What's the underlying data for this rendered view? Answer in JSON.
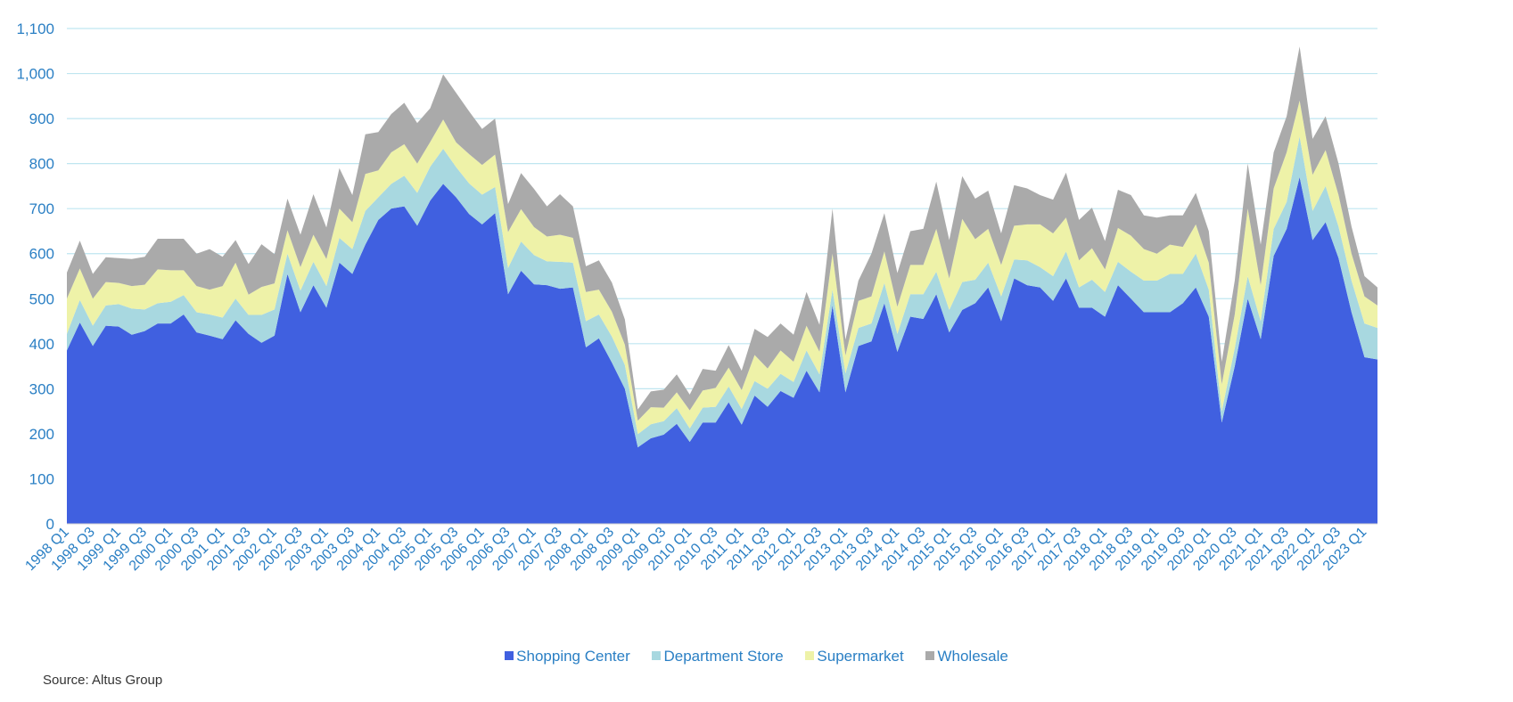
{
  "chart_data": {
    "type": "area",
    "stacked": true,
    "title": "",
    "xlabel": "",
    "ylabel": "",
    "ylim": [
      0,
      1100
    ],
    "yticks": [
      0,
      100,
      200,
      300,
      400,
      500,
      600,
      700,
      800,
      900,
      1000,
      1100
    ],
    "ytick_labels": [
      "0",
      "100",
      "200",
      "300",
      "400",
      "500",
      "600",
      "700",
      "800",
      "900",
      "1,000",
      "1,100"
    ],
    "grid": true,
    "legend_position": "bottom-center",
    "xtick_labels": [
      "1998 Q1",
      "1998 Q3",
      "1999 Q1",
      "1999 Q3",
      "2000 Q1",
      "2000 Q3",
      "2001 Q1",
      "2001 Q3",
      "2002 Q1",
      "2002 Q3",
      "2003 Q1",
      "2003 Q3",
      "2004 Q1",
      "2004 Q3",
      "2005 Q1",
      "2005 Q3",
      "2006 Q1",
      "2006 Q3",
      "2007 Q1",
      "2007 Q3",
      "2008 Q1",
      "2008 Q3",
      "2009 Q1",
      "2009 Q3",
      "2010 Q1",
      "2010 Q3",
      "2011 Q1",
      "2011 Q3",
      "2012 Q1",
      "2012 Q3",
      "2013 Q1",
      "2013 Q3",
      "2014 Q1",
      "2014 Q3",
      "2015 Q1",
      "2015 Q3",
      "2016 Q1",
      "2016 Q3",
      "2017 Q1",
      "2017 Q3",
      "2018 Q1",
      "2018 Q3",
      "2019 Q1",
      "2019 Q3",
      "2020 Q1",
      "2020 Q3",
      "2021 Q1",
      "2021 Q3",
      "2022 Q1",
      "2022 Q3",
      "2023 Q1"
    ],
    "series": [
      {
        "name": "Shopping Center",
        "color": "#4060e0",
        "values": [
          385,
          447,
          395,
          440,
          438,
          420,
          428,
          445,
          445,
          465,
          425,
          418,
          410,
          452,
          422,
          402,
          418,
          555,
          470,
          530,
          480,
          580,
          555,
          620,
          675,
          700,
          705,
          662,
          718,
          755,
          725,
          688,
          665,
          690,
          510,
          562,
          532,
          530,
          522,
          525,
          392,
          412,
          358,
          300,
          170,
          190,
          198,
          222,
          182,
          225,
          225,
          270,
          220,
          285,
          260,
          295,
          280,
          340,
          292,
          485,
          292,
          395,
          405,
          490,
          382,
          460,
          455,
          510,
          425,
          475,
          490,
          525,
          450,
          545,
          530,
          525,
          495,
          545,
          480,
          480,
          460,
          530,
          500,
          470,
          470,
          470,
          490,
          525,
          460,
          225,
          350,
          500,
          410,
          595,
          655,
          770,
          630,
          670,
          590,
          470,
          370,
          365
        ]
      },
      {
        "name": "Department Store",
        "color": "#a8d8e0",
        "values": [
          37,
          50,
          45,
          45,
          50,
          58,
          48,
          45,
          48,
          43,
          45,
          47,
          48,
          48,
          42,
          62,
          58,
          45,
          48,
          52,
          48,
          55,
          55,
          75,
          50,
          55,
          68,
          73,
          75,
          78,
          67,
          68,
          66,
          58,
          58,
          65,
          65,
          53,
          60,
          55,
          58,
          53,
          58,
          53,
          29,
          31,
          30,
          35,
          30,
          33,
          35,
          35,
          35,
          32,
          40,
          38,
          35,
          45,
          40,
          35,
          42,
          40,
          40,
          45,
          40,
          50,
          55,
          50,
          50,
          62,
          52,
          55,
          55,
          42,
          55,
          45,
          55,
          60,
          45,
          62,
          55,
          52,
          60,
          70,
          70,
          85,
          65,
          75,
          60,
          25,
          40,
          50,
          40,
          60,
          60,
          90,
          65,
          80,
          70,
          70,
          75,
          70
        ]
      },
      {
        "name": "Supermarket",
        "color": "#eef2a8",
        "values": [
          78,
          70,
          60,
          52,
          47,
          50,
          55,
          75,
          70,
          55,
          58,
          55,
          70,
          80,
          45,
          62,
          58,
          52,
          52,
          60,
          60,
          65,
          60,
          82,
          60,
          70,
          70,
          65,
          55,
          65,
          55,
          65,
          66,
          72,
          80,
          72,
          62,
          55,
          60,
          55,
          65,
          55,
          55,
          45,
          30,
          38,
          30,
          35,
          40,
          38,
          42,
          42,
          42,
          58,
          45,
          52,
          45,
          55,
          50,
          80,
          40,
          60,
          60,
          70,
          60,
          65,
          65,
          95,
          70,
          140,
          90,
          75,
          70,
          75,
          80,
          95,
          95,
          75,
          60,
          70,
          50,
          75,
          80,
          70,
          60,
          65,
          60,
          65,
          60,
          60,
          75,
          150,
          80,
          90,
          110,
          80,
          80,
          80,
          70,
          60,
          60,
          50
        ]
      },
      {
        "name": "Wholesale",
        "color": "#aaaaaa",
        "values": [
          58,
          62,
          55,
          55,
          55,
          60,
          62,
          68,
          70,
          70,
          72,
          90,
          65,
          50,
          68,
          95,
          65,
          70,
          72,
          90,
          70,
          90,
          60,
          88,
          85,
          85,
          92,
          90,
          75,
          100,
          110,
          95,
          80,
          80,
          62,
          80,
          85,
          67,
          90,
          70,
          57,
          65,
          65,
          56,
          25,
          35,
          40,
          40,
          35,
          48,
          38,
          50,
          43,
          58,
          70,
          60,
          60,
          75,
          60,
          100,
          35,
          45,
          95,
          85,
          75,
          75,
          80,
          105,
          85,
          95,
          90,
          85,
          70,
          90,
          80,
          65,
          75,
          100,
          90,
          90,
          63,
          85,
          90,
          75,
          80,
          65,
          70,
          70,
          70,
          50,
          75,
          100,
          90,
          80,
          80,
          120,
          80,
          75,
          70,
          60,
          45,
          40
        ]
      }
    ]
  },
  "legend": {
    "items": [
      {
        "label": "Shopping Center",
        "color": "#4060e0"
      },
      {
        "label": "Department Store",
        "color": "#a8d8e0"
      },
      {
        "label": "Supermarket",
        "color": "#eef2a8"
      },
      {
        "label": "Wholesale",
        "color": "#aaaaaa"
      }
    ]
  },
  "source": "Source: Altus Group"
}
